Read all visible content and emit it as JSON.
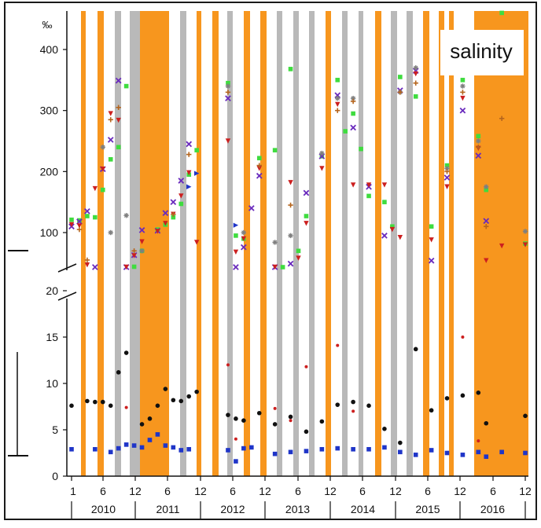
{
  "chart_data": {
    "type": "scatter",
    "title": "",
    "legend_label": "salinity",
    "unit_label": "‰",
    "ylabel": "",
    "xlabel": "",
    "y_axis_break": true,
    "ylim_lower": [
      0,
      22
    ],
    "ylim_upper": [
      40,
      460
    ],
    "yticks_lower": [
      "0",
      "5",
      "10",
      "15",
      "20"
    ],
    "yticks_upper": [
      "100",
      "200",
      "300",
      "400"
    ],
    "x_month_ticks": [
      "1",
      "6",
      "12",
      "6",
      "12",
      "6",
      "12",
      "6",
      "12",
      "6",
      "12",
      "6",
      "12",
      "6",
      "12"
    ],
    "years": [
      "2010",
      "2011",
      "2012",
      "2013",
      "2014",
      "2015",
      "2016"
    ],
    "colors": {
      "orange_band": "#f7961e",
      "gray_band": "#b9b9b9",
      "black": "#111111",
      "blue": "#1f35c8",
      "red": "#cc1f1f",
      "green": "#3fdc3f",
      "purple": "#6a2bbd",
      "gray_marker": "#7f7f7f",
      "brown": "#b5651d"
    },
    "series_lower": [
      {
        "marker": "circle",
        "color": "black",
        "points": [
          [
            1,
            7.6
          ],
          [
            3,
            8.1
          ],
          [
            4,
            8.0
          ],
          [
            5,
            8.0
          ],
          [
            6,
            7.6
          ],
          [
            7,
            11.2
          ],
          [
            8,
            13.3
          ],
          [
            10,
            5.6
          ],
          [
            11,
            6.2
          ],
          [
            12,
            7.6
          ],
          [
            13,
            9.4
          ],
          [
            14,
            8.2
          ],
          [
            15,
            8.1
          ],
          [
            16,
            8.6
          ],
          [
            17,
            9.1
          ],
          [
            21,
            6.6
          ],
          [
            22,
            6.2
          ],
          [
            23,
            6.0
          ],
          [
            25,
            6.8
          ],
          [
            27,
            5.6
          ],
          [
            29,
            6.4
          ],
          [
            31,
            4.8
          ],
          [
            33,
            5.9
          ],
          [
            35,
            7.7
          ],
          [
            37,
            8.0
          ],
          [
            39,
            7.6
          ],
          [
            41,
            5.1
          ],
          [
            43,
            3.6
          ],
          [
            45,
            13.7
          ],
          [
            47,
            7.1
          ],
          [
            49,
            8.4
          ],
          [
            51,
            8.7
          ],
          [
            53,
            9.0
          ],
          [
            54,
            5.7
          ],
          [
            59,
            6.5
          ]
        ]
      },
      {
        "marker": "square",
        "color": "blue",
        "points": [
          [
            1,
            2.9
          ],
          [
            4,
            2.9
          ],
          [
            6,
            2.6
          ],
          [
            7,
            3.0
          ],
          [
            8,
            3.4
          ],
          [
            9,
            3.3
          ],
          [
            10,
            3.1
          ],
          [
            11,
            3.9
          ],
          [
            12,
            4.5
          ],
          [
            13,
            3.3
          ],
          [
            14,
            3.1
          ],
          [
            15,
            2.8
          ],
          [
            16,
            2.9
          ],
          [
            21,
            2.8
          ],
          [
            22,
            1.6
          ],
          [
            23,
            3.0
          ],
          [
            24,
            3.1
          ],
          [
            27,
            2.4
          ],
          [
            29,
            2.6
          ],
          [
            31,
            2.7
          ],
          [
            33,
            2.9
          ],
          [
            35,
            3.0
          ],
          [
            37,
            2.9
          ],
          [
            39,
            2.9
          ],
          [
            41,
            3.1
          ],
          [
            43,
            2.6
          ],
          [
            45,
            2.3
          ],
          [
            47,
            2.8
          ],
          [
            49,
            2.5
          ],
          [
            51,
            2.3
          ],
          [
            53,
            2.6
          ],
          [
            54,
            2.1
          ],
          [
            56,
            2.6
          ],
          [
            59,
            2.5
          ]
        ]
      },
      {
        "marker": "small",
        "color": "red",
        "points": [
          [
            8,
            7.4
          ],
          [
            21,
            12.0
          ],
          [
            22,
            4.0
          ],
          [
            27,
            7.3
          ],
          [
            29,
            6.0
          ],
          [
            31,
            11.8
          ],
          [
            35,
            14.1
          ],
          [
            37,
            7.0
          ],
          [
            51,
            15.0
          ],
          [
            53,
            3.8
          ]
        ]
      }
    ],
    "series_upper": [
      {
        "name": "green",
        "marker": "square",
        "color": "green",
        "points": [
          [
            1,
            121
          ],
          [
            2,
            120
          ],
          [
            3,
            127
          ],
          [
            4,
            125
          ],
          [
            5,
            170
          ],
          [
            6,
            220
          ],
          [
            7,
            240
          ],
          [
            8,
            340
          ],
          [
            9,
            44
          ],
          [
            10,
            70
          ],
          [
            12,
            105
          ],
          [
            13,
            113
          ],
          [
            14,
            125
          ],
          [
            15,
            147
          ],
          [
            16,
            195
          ],
          [
            17,
            235
          ],
          [
            21,
            345
          ],
          [
            22,
            95
          ],
          [
            23,
            90
          ],
          [
            25,
            222
          ],
          [
            27,
            235
          ],
          [
            28,
            18
          ],
          [
            29,
            368
          ],
          [
            30,
            70
          ],
          [
            31,
            127
          ],
          [
            33,
            225
          ],
          [
            35,
            350
          ],
          [
            36,
            266
          ],
          [
            37,
            295
          ],
          [
            38,
            237
          ],
          [
            39,
            160
          ],
          [
            41,
            150
          ],
          [
            42,
            110
          ],
          [
            43,
            355
          ],
          [
            45,
            323
          ],
          [
            47,
            110
          ],
          [
            49,
            210
          ],
          [
            51,
            350
          ],
          [
            53,
            258
          ],
          [
            54,
            170
          ],
          [
            56,
            460
          ],
          [
            59,
            82
          ]
        ]
      },
      {
        "name": "purple",
        "marker": "cross",
        "color": "purple",
        "points": [
          [
            1,
            110
          ],
          [
            2,
            118
          ],
          [
            3,
            135
          ],
          [
            4,
            23
          ],
          [
            5,
            204
          ],
          [
            6,
            252
          ],
          [
            7,
            349
          ],
          [
            8,
            28
          ],
          [
            9,
            63
          ],
          [
            10,
            104
          ],
          [
            12,
            103
          ],
          [
            13,
            132
          ],
          [
            14,
            150
          ],
          [
            15,
            185
          ],
          [
            16,
            245
          ],
          [
            21,
            320
          ],
          [
            22,
            23
          ],
          [
            23,
            76
          ],
          [
            24,
            140
          ],
          [
            25,
            193
          ],
          [
            27,
            26
          ],
          [
            29,
            49
          ],
          [
            31,
            165
          ],
          [
            33,
            225
          ],
          [
            35,
            325
          ],
          [
            37,
            272
          ],
          [
            39,
            175
          ],
          [
            41,
            95
          ],
          [
            43,
            333
          ],
          [
            45,
            365
          ],
          [
            47,
            54
          ],
          [
            49,
            190
          ],
          [
            51,
            300
          ],
          [
            53,
            226
          ],
          [
            54,
            119
          ]
        ]
      },
      {
        "name": "red",
        "marker": "triangle-down",
        "color": "red",
        "points": [
          [
            1,
            113
          ],
          [
            2,
            111
          ],
          [
            3,
            47
          ],
          [
            4,
            172
          ],
          [
            5,
            204
          ],
          [
            6,
            295
          ],
          [
            7,
            284
          ],
          [
            8,
            30
          ],
          [
            9,
            62
          ],
          [
            10,
            85
          ],
          [
            12,
            102
          ],
          [
            13,
            115
          ],
          [
            14,
            130
          ],
          [
            15,
            160
          ],
          [
            16,
            198
          ],
          [
            17,
            84
          ],
          [
            21,
            250
          ],
          [
            22,
            68
          ],
          [
            23,
            90
          ],
          [
            25,
            205
          ],
          [
            27,
            24
          ],
          [
            29,
            182
          ],
          [
            30,
            58
          ],
          [
            31,
            115
          ],
          [
            33,
            205
          ],
          [
            35,
            310
          ],
          [
            37,
            178
          ],
          [
            39,
            178
          ],
          [
            41,
            178
          ],
          [
            42,
            105
          ],
          [
            43,
            92
          ],
          [
            45,
            360
          ],
          [
            47,
            88
          ],
          [
            49,
            175
          ],
          [
            51,
            320
          ],
          [
            53,
            238
          ],
          [
            54,
            54
          ],
          [
            56,
            78
          ],
          [
            59,
            80
          ]
        ]
      },
      {
        "name": "gray",
        "marker": "star",
        "color": "gray_marker",
        "points": [
          [
            5,
            240
          ],
          [
            6,
            100
          ],
          [
            8,
            128
          ],
          [
            10,
            70
          ],
          [
            21,
            340
          ],
          [
            23,
            100
          ],
          [
            27,
            84
          ],
          [
            29,
            95
          ],
          [
            33,
            230
          ],
          [
            35,
            320
          ],
          [
            37,
            320
          ],
          [
            43,
            330
          ],
          [
            45,
            370
          ],
          [
            49,
            205
          ],
          [
            51,
            340
          ],
          [
            53,
            250
          ],
          [
            54,
            175
          ],
          [
            56,
            375
          ],
          [
            59,
            102
          ]
        ]
      },
      {
        "name": "brown",
        "marker": "plus",
        "color": "brown",
        "points": [
          [
            2,
            105
          ],
          [
            3,
            55
          ],
          [
            6,
            285
          ],
          [
            7,
            305
          ],
          [
            9,
            70
          ],
          [
            14,
            130
          ],
          [
            16,
            228
          ],
          [
            21,
            330
          ],
          [
            25,
            210
          ],
          [
            29,
            145
          ],
          [
            35,
            300
          ],
          [
            37,
            315
          ],
          [
            43,
            330
          ],
          [
            45,
            345
          ],
          [
            49,
            200
          ],
          [
            51,
            330
          ],
          [
            53,
            240
          ],
          [
            54,
            110
          ],
          [
            56,
            287
          ]
        ]
      },
      {
        "name": "blue",
        "marker": "triangle-right",
        "color": "blue",
        "points": [
          [
            16,
            175
          ],
          [
            17,
            197
          ],
          [
            22,
            112
          ]
        ]
      }
    ]
  }
}
